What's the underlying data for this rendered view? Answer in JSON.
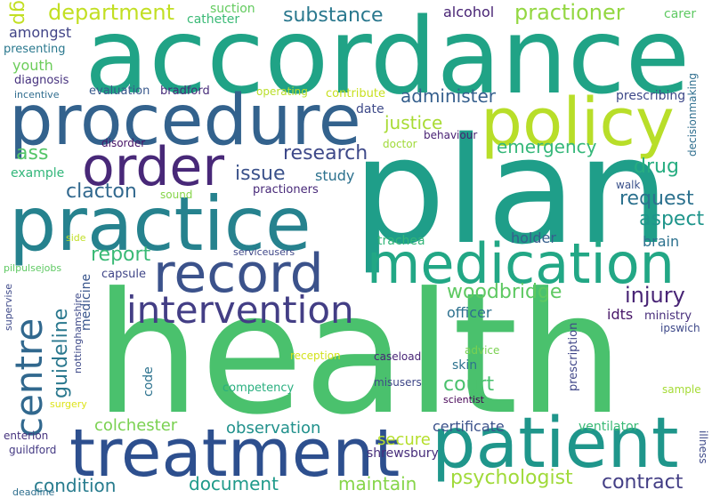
{
  "words": [
    {
      "text": "health",
      "color": "#4ac16d"
    },
    {
      "text": "plan",
      "color": "#1f9e89"
    },
    {
      "text": "accordance",
      "color": "#20a386"
    },
    {
      "text": "procedure",
      "color": "#33628d"
    },
    {
      "text": "practice",
      "color": "#26828e"
    },
    {
      "text": "policy",
      "color": "#b8de29"
    },
    {
      "text": "treatment",
      "color": "#2d4f8e"
    },
    {
      "text": "patient",
      "color": "#1f968b"
    },
    {
      "text": "medication",
      "color": "#22a785"
    },
    {
      "text": "order",
      "color": "#482878"
    },
    {
      "text": "record",
      "color": "#3b528b"
    },
    {
      "text": "intervention",
      "color": "#433e85"
    },
    {
      "text": "centre",
      "color": "#31688e"
    },
    {
      "text": "department",
      "color": "#c2df23"
    },
    {
      "text": "substance",
      "color": "#2a788e"
    },
    {
      "text": "practioner",
      "color": "#93d741"
    },
    {
      "text": "guideline",
      "color": "#2a788e"
    },
    {
      "text": "woodbridge",
      "color": "#5ec962"
    },
    {
      "text": "injury",
      "color": "#482475"
    },
    {
      "text": "research",
      "color": "#3e4989"
    },
    {
      "text": "administer",
      "color": "#355f8d"
    },
    {
      "text": "justice",
      "color": "#a8db34"
    },
    {
      "text": "emergency",
      "color": "#35b779"
    },
    {
      "text": "drug",
      "color": "#27ad81"
    },
    {
      "text": "issue",
      "color": "#3b528b"
    },
    {
      "text": "clacton",
      "color": "#31688e"
    },
    {
      "text": "report",
      "color": "#3aba76"
    },
    {
      "text": "request",
      "color": "#2c718e"
    },
    {
      "text": "aspect",
      "color": "#1f958b"
    },
    {
      "text": "court",
      "color": "#4ac16d"
    },
    {
      "text": "colchester",
      "color": "#7ad151"
    },
    {
      "text": "observation",
      "color": "#21918c"
    },
    {
      "text": "condition",
      "color": "#287c8e"
    },
    {
      "text": "document",
      "color": "#1f9a8a"
    },
    {
      "text": "maintain",
      "color": "#86d549"
    },
    {
      "text": "psychologist",
      "color": "#a0da39"
    },
    {
      "text": "contract",
      "color": "#433e85"
    },
    {
      "text": "secure",
      "color": "#b5de2b"
    },
    {
      "text": "certificate",
      "color": "#3b528b"
    },
    {
      "text": "shrewsbury",
      "color": "#472d7b"
    },
    {
      "text": "ass",
      "color": "#54c568"
    },
    {
      "text": "gp",
      "color": "#c2df23"
    },
    {
      "text": "amongst",
      "color": "#414487"
    },
    {
      "text": "youth",
      "color": "#6ccd5a"
    },
    {
      "text": "alcohol",
      "color": "#482475"
    },
    {
      "text": "suction",
      "color": "#63cb5f"
    },
    {
      "text": "catheter",
      "color": "#3aba76"
    },
    {
      "text": "carer",
      "color": "#5ec962"
    },
    {
      "text": "presenting",
      "color": "#2a788e"
    },
    {
      "text": "diagnosis",
      "color": "#46327e"
    },
    {
      "text": "incentive",
      "color": "#2f6c8e"
    },
    {
      "text": "evaluation",
      "color": "#38588c"
    },
    {
      "text": "bradford",
      "color": "#472c7a"
    },
    {
      "text": "operating",
      "color": "#b8de29"
    },
    {
      "text": "contribute",
      "color": "#c8e020"
    },
    {
      "text": "date",
      "color": "#3e4a89"
    },
    {
      "text": "prescribing",
      "color": "#3e4989"
    },
    {
      "text": "decisionmaking",
      "color": "#2e6e8e"
    },
    {
      "text": "disorder",
      "color": "#481467"
    },
    {
      "text": "doctor",
      "color": "#a0da39"
    },
    {
      "text": "behaviour",
      "color": "#482173"
    },
    {
      "text": "example",
      "color": "#32b67a"
    },
    {
      "text": "study",
      "color": "#2c718e"
    },
    {
      "text": "sound",
      "color": "#86d549"
    },
    {
      "text": "practioners",
      "color": "#482979"
    },
    {
      "text": "walk",
      "color": "#3b528b"
    },
    {
      "text": "holder",
      "color": "#355f8d"
    },
    {
      "text": "trachea",
      "color": "#34b679"
    },
    {
      "text": "brain",
      "color": "#2c718e"
    },
    {
      "text": "side",
      "color": "#c0df25"
    },
    {
      "text": "serviceusers",
      "color": "#3f4788"
    },
    {
      "text": "pilpulsejobs",
      "color": "#5ec962"
    },
    {
      "text": "capsule",
      "color": "#404688"
    },
    {
      "text": "supervise",
      "color": "#3e4989"
    },
    {
      "text": "nottinghamshire",
      "color": "#3e4a89"
    },
    {
      "text": "medicine",
      "color": "#39568c"
    },
    {
      "text": "code",
      "color": "#2c728e"
    },
    {
      "text": "officer",
      "color": "#2d708e"
    },
    {
      "text": "idts",
      "color": "#481769"
    },
    {
      "text": "ministry",
      "color": "#472d7b"
    },
    {
      "text": "ipswich",
      "color": "#3e4989"
    },
    {
      "text": "prescription",
      "color": "#404688"
    },
    {
      "text": "advice",
      "color": "#7ad151"
    },
    {
      "text": "reception",
      "color": "#d2e21b"
    },
    {
      "text": "caseload",
      "color": "#482576"
    },
    {
      "text": "skin",
      "color": "#2c728e"
    },
    {
      "text": "competency",
      "color": "#29af7f"
    },
    {
      "text": "misusers",
      "color": "#3f4788"
    },
    {
      "text": "sample",
      "color": "#a5db36"
    },
    {
      "text": "scientist",
      "color": "#440154"
    },
    {
      "text": "surgery",
      "color": "#dde318"
    },
    {
      "text": "ventilator",
      "color": "#3aba76"
    },
    {
      "text": "enterion",
      "color": "#46337e"
    },
    {
      "text": "guildford",
      "color": "#443983"
    },
    {
      "text": "illness",
      "color": "#3e4a89"
    },
    {
      "text": "deadline",
      "color": "#2e6f8e"
    }
  ]
}
